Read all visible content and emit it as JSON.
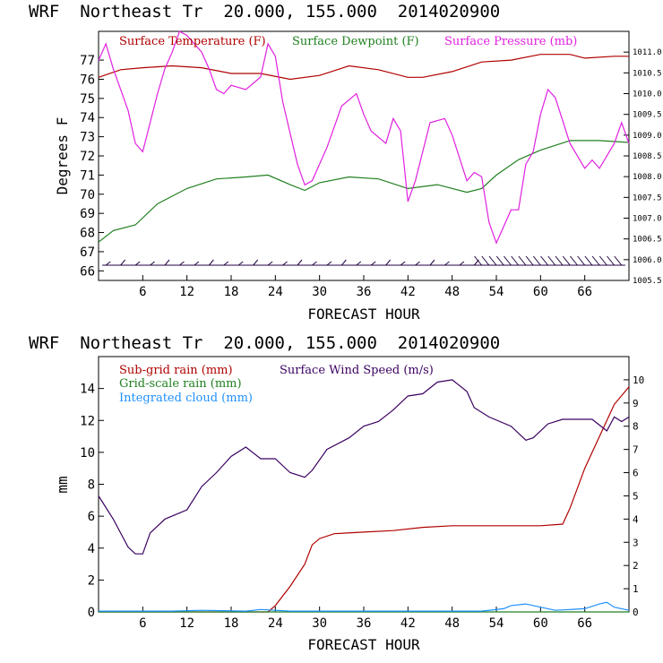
{
  "chart_data": [
    {
      "type": "line",
      "header": "WRF  Northeast Tr  20.000, 155.000  2014020900",
      "xlabel": "FORECAST HOUR",
      "ylabel": "Degrees F",
      "xlim": [
        0,
        72
      ],
      "xticks": [
        6,
        12,
        18,
        24,
        30,
        36,
        42,
        48,
        54,
        60,
        66
      ],
      "ylim": [
        65.5,
        78.5
      ],
      "yticks": [
        66,
        67,
        68,
        69,
        70,
        71,
        72,
        73,
        74,
        75,
        76,
        77
      ],
      "y2lim": [
        1005.5,
        1011.5
      ],
      "y2ticks": [
        "1005.5",
        "1006.0",
        "1006.5",
        "1007.0",
        "1007.5",
        "1008.0",
        "1008.5",
        "1009.0",
        "1009.5",
        "1010.0",
        "1010.5",
        "1011.0"
      ],
      "series": [
        {
          "name": "Surface Temperature (F)",
          "color": "#b00000",
          "axis": "left",
          "x": [
            0,
            3,
            6,
            10,
            14,
            18,
            22,
            26,
            30,
            34,
            38,
            42,
            44,
            48,
            52,
            56,
            60,
            64,
            66,
            70,
            72
          ],
          "y": [
            76.1,
            76.5,
            76.6,
            76.7,
            76.6,
            76.3,
            76.3,
            76.0,
            76.2,
            76.7,
            76.5,
            76.1,
            76.1,
            76.4,
            76.9,
            77.0,
            77.3,
            77.3,
            77.1,
            77.2,
            77.2
          ]
        },
        {
          "name": "Surface Dewpoint (F)",
          "color": "#208020",
          "axis": "left",
          "x": [
            0,
            2,
            5,
            8,
            12,
            16,
            20,
            23,
            26,
            28,
            30,
            34,
            38,
            42,
            46,
            50,
            52,
            54,
            57,
            60,
            64,
            68,
            72
          ],
          "y": [
            67.5,
            68.1,
            68.4,
            69.5,
            70.3,
            70.8,
            70.9,
            71.0,
            70.5,
            70.2,
            70.6,
            70.9,
            70.8,
            70.3,
            70.5,
            70.1,
            70.3,
            71.0,
            71.8,
            72.3,
            72.8,
            72.8,
            72.7
          ]
        },
        {
          "name": "Surface Pressure (mb)",
          "color": "#e020e0",
          "axis": "right",
          "x": [
            0,
            1,
            2,
            4,
            5,
            6,
            7,
            8,
            9,
            10,
            11,
            12,
            13,
            14,
            15,
            16,
            17,
            18,
            20,
            22,
            23,
            24,
            25,
            27,
            28,
            29,
            31,
            33,
            35,
            36,
            37,
            39,
            40,
            41,
            42,
            43,
            44,
            45,
            47,
            48,
            50,
            51,
            52,
            53,
            54,
            55,
            56,
            57,
            58,
            59,
            60,
            61,
            62,
            64,
            66,
            67,
            68,
            70,
            71,
            72
          ],
          "y": [
            1010.8,
            1011.2,
            1010.6,
            1009.6,
            1008.8,
            1008.6,
            1009.3,
            1010.0,
            1010.6,
            1011.0,
            1011.5,
            1011.4,
            1011.2,
            1011.0,
            1010.6,
            1010.1,
            1010.0,
            1010.2,
            1010.1,
            1010.4,
            1011.2,
            1010.9,
            1009.8,
            1008.3,
            1007.8,
            1007.9,
            1008.7,
            1009.7,
            1010.0,
            1009.5,
            1009.1,
            1008.8,
            1009.4,
            1009.1,
            1007.4,
            1007.9,
            1008.6,
            1009.3,
            1009.4,
            1009.0,
            1007.9,
            1008.1,
            1008.0,
            1006.9,
            1006.4,
            1006.8,
            1007.2,
            1007.2,
            1008.3,
            1008.6,
            1009.5,
            1010.1,
            1009.9,
            1008.8,
            1008.2,
            1008.4,
            1008.2,
            1008.8,
            1009.3,
            1008.8
          ]
        }
      ],
      "wind_barbs": {
        "color": "#200040"
      }
    },
    {
      "type": "line",
      "header": "WRF  Northeast Tr  20.000, 155.000  2014020900",
      "xlabel": "FORECAST HOUR",
      "ylabel": "mm",
      "xlim": [
        0,
        72
      ],
      "xticks": [
        6,
        12,
        18,
        24,
        30,
        36,
        42,
        48,
        54,
        60,
        66
      ],
      "ylim": [
        0,
        16
      ],
      "yticks": [
        0,
        2,
        4,
        6,
        8,
        10,
        12,
        14
      ],
      "y2lim": [
        0,
        11
      ],
      "y2ticks": [
        0,
        1,
        2,
        3,
        4,
        5,
        6,
        7,
        8,
        9,
        10
      ],
      "series": [
        {
          "name": "Sub-grid rain (mm)",
          "color": "#b00000",
          "axis": "left",
          "x": [
            0,
            23,
            24,
            26,
            28,
            29,
            30,
            32,
            36,
            40,
            44,
            48,
            52,
            56,
            60,
            63,
            64,
            66,
            68,
            70,
            72
          ],
          "y": [
            0,
            0,
            0.4,
            1.6,
            3.0,
            4.2,
            4.6,
            4.9,
            5.0,
            5.1,
            5.3,
            5.4,
            5.4,
            5.4,
            5.4,
            5.5,
            6.5,
            9.0,
            11.0,
            13.0,
            14.1
          ]
        },
        {
          "name": "Grid-scale rain (mm)",
          "color": "#208020",
          "axis": "left",
          "x": [
            0,
            72
          ],
          "y": [
            0,
            0
          ]
        },
        {
          "name": "Integrated cloud (mm)",
          "color": "#1e90ff",
          "axis": "left",
          "x": [
            0,
            10,
            14,
            20,
            22,
            24,
            26,
            30,
            36,
            42,
            48,
            52,
            55,
            56,
            58,
            60,
            62,
            66,
            68,
            69,
            70,
            72
          ],
          "y": [
            0.05,
            0.05,
            0.1,
            0.05,
            0.15,
            0.1,
            0.05,
            0.05,
            0.05,
            0.05,
            0.05,
            0.05,
            0.2,
            0.4,
            0.5,
            0.3,
            0.1,
            0.2,
            0.5,
            0.6,
            0.3,
            0.1
          ]
        },
        {
          "name": "Surface Wind Speed (m/s)",
          "color": "#3a0060",
          "axis": "right",
          "x": [
            0,
            2,
            4,
            5,
            6,
            7,
            9,
            12,
            14,
            16,
            18,
            20,
            22,
            24,
            26,
            28,
            29,
            31,
            34,
            36,
            38,
            40,
            42,
            44,
            46,
            48,
            50,
            51,
            53,
            56,
            58,
            59,
            61,
            63,
            65,
            67,
            69,
            70,
            71,
            72
          ],
          "y": [
            5.0,
            4.0,
            2.8,
            2.5,
            2.5,
            3.4,
            4.0,
            4.4,
            5.4,
            6.0,
            6.7,
            7.1,
            6.6,
            6.6,
            6.0,
            5.8,
            6.1,
            7.0,
            7.5,
            8.0,
            8.2,
            8.7,
            9.3,
            9.4,
            9.9,
            10.0,
            9.5,
            8.8,
            8.4,
            8.0,
            7.4,
            7.5,
            8.1,
            8.3,
            8.3,
            8.3,
            7.8,
            8.4,
            8.2,
            8.4
          ]
        }
      ]
    }
  ]
}
